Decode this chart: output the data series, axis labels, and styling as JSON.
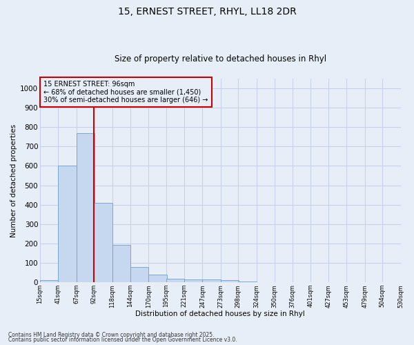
{
  "title1": "15, ERNEST STREET, RHYL, LL18 2DR",
  "title2": "Size of property relative to detached houses in Rhyl",
  "xlabel": "Distribution of detached houses by size in Rhyl",
  "ylabel": "Number of detached properties",
  "bin_edges": [
    15,
    41,
    67,
    92,
    118,
    144,
    170,
    195,
    221,
    247,
    273,
    298,
    324,
    350,
    376,
    401,
    427,
    453,
    479,
    504,
    530
  ],
  "bin_labels": [
    "15sqm",
    "41sqm",
    "67sqm",
    "92sqm",
    "118sqm",
    "144sqm",
    "170sqm",
    "195sqm",
    "221sqm",
    "247sqm",
    "273sqm",
    "298sqm",
    "324sqm",
    "350sqm",
    "376sqm",
    "401sqm",
    "427sqm",
    "453sqm",
    "479sqm",
    "504sqm",
    "530sqm"
  ],
  "bar_heights": [
    10,
    600,
    770,
    410,
    193,
    78,
    38,
    17,
    13,
    13,
    10,
    5,
    0,
    0,
    0,
    0,
    0,
    0,
    0,
    0
  ],
  "bar_color": "#c5d8f0",
  "bar_edge_color": "#6aa0cc",
  "vline_x": 92,
  "vline_color": "#cc0000",
  "ylim": [
    0,
    1050
  ],
  "yticks": [
    0,
    100,
    200,
    300,
    400,
    500,
    600,
    700,
    800,
    900,
    1000
  ],
  "annotation_text": "15 ERNEST STREET: 96sqm\n← 68% of detached houses are smaller (1,450)\n30% of semi-detached houses are larger (646) →",
  "annotation_box_color": "#cc0000",
  "footer1": "Contains HM Land Registry data © Crown copyright and database right 2025.",
  "footer2": "Contains public sector information licensed under the Open Government Licence v3.0.",
  "bg_color": "#e8eef8",
  "grid_color": "#c5cfe8"
}
